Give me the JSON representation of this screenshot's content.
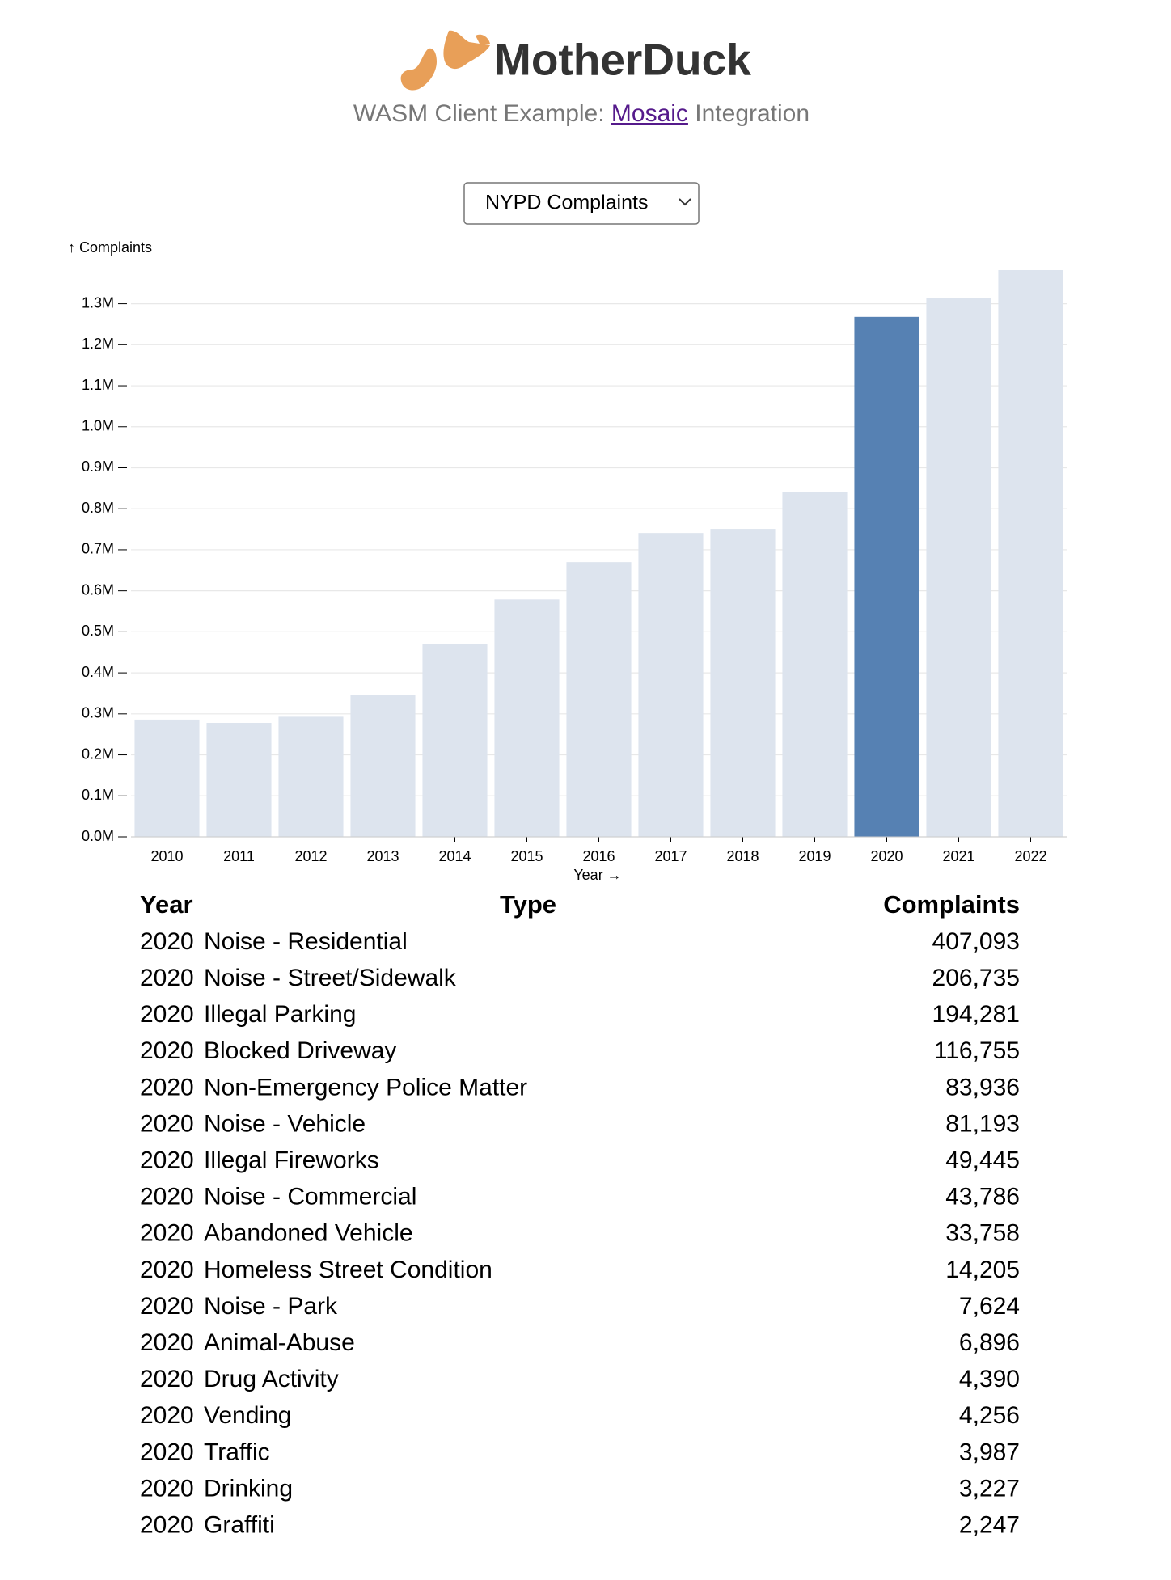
{
  "header": {
    "logo": "MotherDuck",
    "subtitle_before": "WASM Client Example:",
    "subtitle_link": "Mosaic",
    "subtitle_after": "Integration"
  },
  "select": {
    "label": "NYPD Complaints"
  },
  "chart_data": {
    "type": "bar",
    "y_label": "↑ Complaints",
    "x_label": "Year →",
    "categories": [
      "2010",
      "2011",
      "2012",
      "2013",
      "2014",
      "2015",
      "2016",
      "2017",
      "2018",
      "2019",
      "2020",
      "2021",
      "2022"
    ],
    "values": [
      286000,
      278000,
      293000,
      347000,
      470000,
      579000,
      670000,
      741000,
      751000,
      840000,
      1268000,
      1313000,
      1382000
    ],
    "colors": [
      "#dde4ee",
      "#dde4ee",
      "#dde4ee",
      "#dde4ee",
      "#dde4ee",
      "#dde4ee",
      "#dde4ee",
      "#dde4ee",
      "#dde4ee",
      "#dde4ee",
      "#5681b3",
      "#dde4ee",
      "#dde4ee"
    ],
    "ylim": [
      0,
      1382000
    ],
    "yticks": [
      {
        "value": 0,
        "label": "0.0M"
      },
      {
        "value": 100000,
        "label": "0.1M"
      },
      {
        "value": 200000,
        "label": "0.2M"
      },
      {
        "value": 300000,
        "label": "0.3M"
      },
      {
        "value": 400000,
        "label": "0.4M"
      },
      {
        "value": 500000,
        "label": "0.5M"
      },
      {
        "value": 600000,
        "label": "0.6M"
      },
      {
        "value": 700000,
        "label": "0.7M"
      },
      {
        "value": 800000,
        "label": "0.8M"
      },
      {
        "value": 900000,
        "label": "0.9M"
      },
      {
        "value": 1000000,
        "label": "1.0M"
      },
      {
        "value": 1100000,
        "label": "1.1M"
      },
      {
        "value": 1200000,
        "label": "1.2M"
      },
      {
        "value": 1300000,
        "label": "1.3M"
      }
    ],
    "grid": true
  },
  "table": {
    "columns": [
      "Year",
      "Type",
      "Complaints"
    ],
    "rows": [
      [
        "2020",
        "Noise - Residential",
        "407,093"
      ],
      [
        "2020",
        "Noise - Street/Sidewalk",
        "206,735"
      ],
      [
        "2020",
        "Illegal Parking",
        "194,281"
      ],
      [
        "2020",
        "Blocked Driveway",
        "116,755"
      ],
      [
        "2020",
        "Non-Emergency Police Matter",
        "83,936"
      ],
      [
        "2020",
        "Noise - Vehicle",
        "81,193"
      ],
      [
        "2020",
        "Illegal Fireworks",
        "49,445"
      ],
      [
        "2020",
        "Noise - Commercial",
        "43,786"
      ],
      [
        "2020",
        "Abandoned Vehicle",
        "33,758"
      ],
      [
        "2020",
        "Homeless Street Condition",
        "14,205"
      ],
      [
        "2020",
        "Noise - Park",
        "7,624"
      ],
      [
        "2020",
        "Animal-Abuse",
        "6,896"
      ],
      [
        "2020",
        "Drug Activity",
        "4,390"
      ],
      [
        "2020",
        "Vending",
        "4,256"
      ],
      [
        "2020",
        "Traffic",
        "3,987"
      ],
      [
        "2020",
        "Drinking",
        "3,227"
      ],
      [
        "2020",
        "Graffiti",
        "2,247"
      ]
    ]
  }
}
